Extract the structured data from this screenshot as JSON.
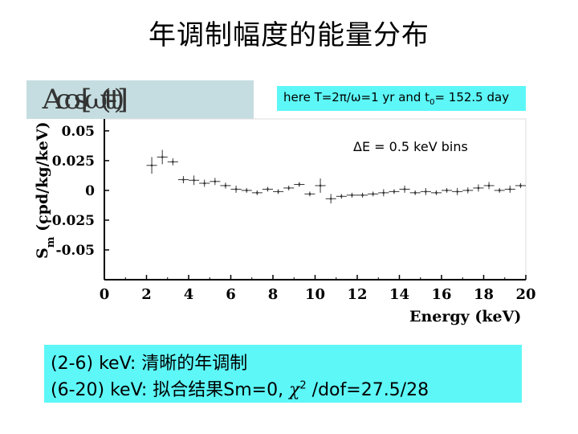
{
  "slide": {
    "title": "年调制幅度的能量分布",
    "formula_image_alt": "A_m cos(ω(t - t_0))",
    "note_prefix": "here T=2",
    "note_pi": "π",
    "note_mid": "/",
    "note_omega": "ω",
    "note_rest": "=1 yr and t",
    "note_sub": "0",
    "note_end": "= 152.5 day",
    "summary_line1": "(2-6) keV: 清晰的年调制",
    "summary_line2_pre": "(6-20) keV: 拟合结果Sm=0, ",
    "summary_chi": "χ",
    "summary_sup": "2",
    "summary_line2_post": " /dof=27.5/28"
  },
  "chart_data": {
    "type": "scatter",
    "title": "",
    "annotation": "ΔE = 0.5 keV bins",
    "xlabel": "Energy (keV)",
    "ylabel_main": "S",
    "ylabel_sub": "m",
    "ylabel_rest": " (cpd/kg/keV)",
    "xlim": [
      0,
      20
    ],
    "ylim": [
      -0.075,
      0.06
    ],
    "x_ticks": [
      "0",
      "2",
      "4",
      "6",
      "8",
      "10",
      "12",
      "14",
      "16",
      "18",
      "20"
    ],
    "y_ticks": [
      {
        "value": 0.05,
        "label": "0.05"
      },
      {
        "value": 0.025,
        "label": "0.025"
      },
      {
        "value": 0,
        "label": "0"
      },
      {
        "value": -0.025,
        "label": "-0.025"
      },
      {
        "value": -0.05,
        "label": "-0.05"
      }
    ],
    "grid": false,
    "points": [
      {
        "x": 2.25,
        "y": 0.021,
        "err": 0.007
      },
      {
        "x": 2.75,
        "y": 0.028,
        "err": 0.006
      },
      {
        "x": 3.25,
        "y": 0.024,
        "err": 0.003
      },
      {
        "x": 3.75,
        "y": 0.009,
        "err": 0.003
      },
      {
        "x": 4.25,
        "y": 0.0085,
        "err": 0.004
      },
      {
        "x": 4.75,
        "y": 0.006,
        "err": 0.003
      },
      {
        "x": 5.25,
        "y": 0.0075,
        "err": 0.003
      },
      {
        "x": 5.75,
        "y": 0.004,
        "err": 0.0025
      },
      {
        "x": 6.25,
        "y": 0.001,
        "err": 0.003
      },
      {
        "x": 6.75,
        "y": 0.0,
        "err": 0.002
      },
      {
        "x": 7.25,
        "y": -0.002,
        "err": 0.002
      },
      {
        "x": 7.75,
        "y": 0.001,
        "err": 0.002
      },
      {
        "x": 8.25,
        "y": -0.001,
        "err": 0.002
      },
      {
        "x": 8.75,
        "y": 0.002,
        "err": 0.002
      },
      {
        "x": 9.25,
        "y": 0.005,
        "err": 0.002
      },
      {
        "x": 9.75,
        "y": -0.003,
        "err": 0.002
      },
      {
        "x": 10.25,
        "y": 0.004,
        "err": 0.006
      },
      {
        "x": 10.75,
        "y": -0.007,
        "err": 0.004
      },
      {
        "x": 11.25,
        "y": -0.005,
        "err": 0.002
      },
      {
        "x": 11.75,
        "y": -0.004,
        "err": 0.002
      },
      {
        "x": 12.25,
        "y": -0.004,
        "err": 0.002
      },
      {
        "x": 12.75,
        "y": -0.003,
        "err": 0.002
      },
      {
        "x": 13.25,
        "y": -0.002,
        "err": 0.003
      },
      {
        "x": 13.75,
        "y": -0.001,
        "err": 0.002
      },
      {
        "x": 14.25,
        "y": 0.001,
        "err": 0.003
      },
      {
        "x": 14.75,
        "y": -0.002,
        "err": 0.002
      },
      {
        "x": 15.25,
        "y": -0.001,
        "err": 0.003
      },
      {
        "x": 15.75,
        "y": -0.002,
        "err": 0.002
      },
      {
        "x": 16.25,
        "y": 0.0,
        "err": 0.002
      },
      {
        "x": 16.75,
        "y": -0.001,
        "err": 0.003
      },
      {
        "x": 17.25,
        "y": 0.0,
        "err": 0.0025
      },
      {
        "x": 17.75,
        "y": 0.002,
        "err": 0.003
      },
      {
        "x": 18.25,
        "y": 0.004,
        "err": 0.003
      },
      {
        "x": 18.75,
        "y": 0.0,
        "err": 0.002
      },
      {
        "x": 19.25,
        "y": 0.001,
        "err": 0.003
      },
      {
        "x": 19.75,
        "y": 0.004,
        "err": 0.002
      }
    ]
  }
}
